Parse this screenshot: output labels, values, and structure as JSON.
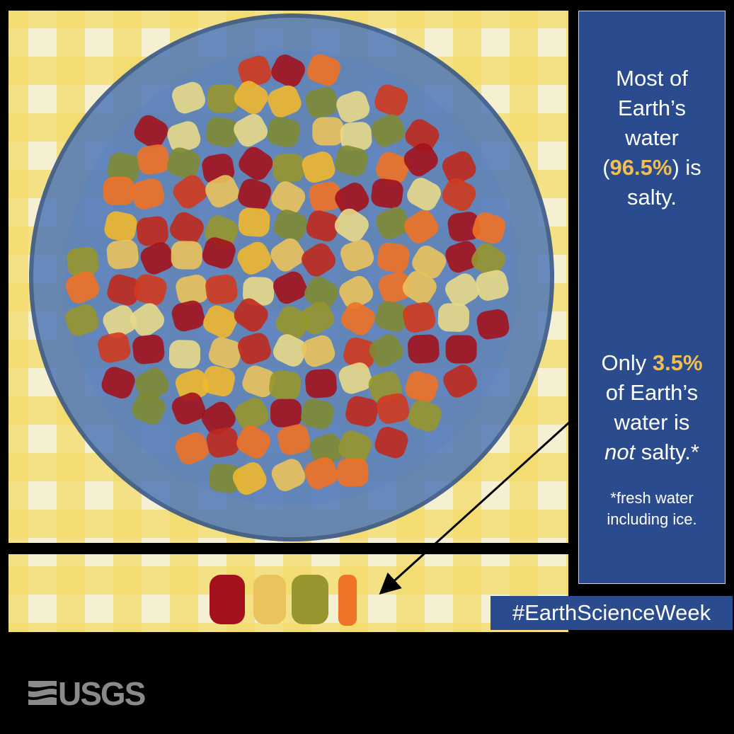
{
  "panel": {
    "message_1": [
      [
        {
          "text": "Most of"
        }
      ],
      [
        {
          "text": "Earth’s"
        }
      ],
      [
        {
          "text": "water"
        }
      ],
      [
        {
          "text": "("
        },
        {
          "text": "96.5%",
          "highlight": true
        },
        {
          "text": ") is"
        }
      ],
      [
        {
          "text": "salty."
        }
      ]
    ],
    "message_2": [
      [
        {
          "text": "Only "
        },
        {
          "text": "3.5%",
          "highlight": true
        }
      ],
      [
        {
          "text": "of Earth’s"
        }
      ],
      [
        {
          "text": "water is"
        }
      ],
      [
        {
          "text": "not",
          "italic": true
        },
        {
          "text": " salty.*"
        }
      ]
    ],
    "footnote": [
      [
        {
          "text": "*fresh water"
        }
      ],
      [
        {
          "text": "including ice."
        }
      ]
    ]
  },
  "hashtag": "#EarthScienceWeek",
  "logo": "USGS"
}
